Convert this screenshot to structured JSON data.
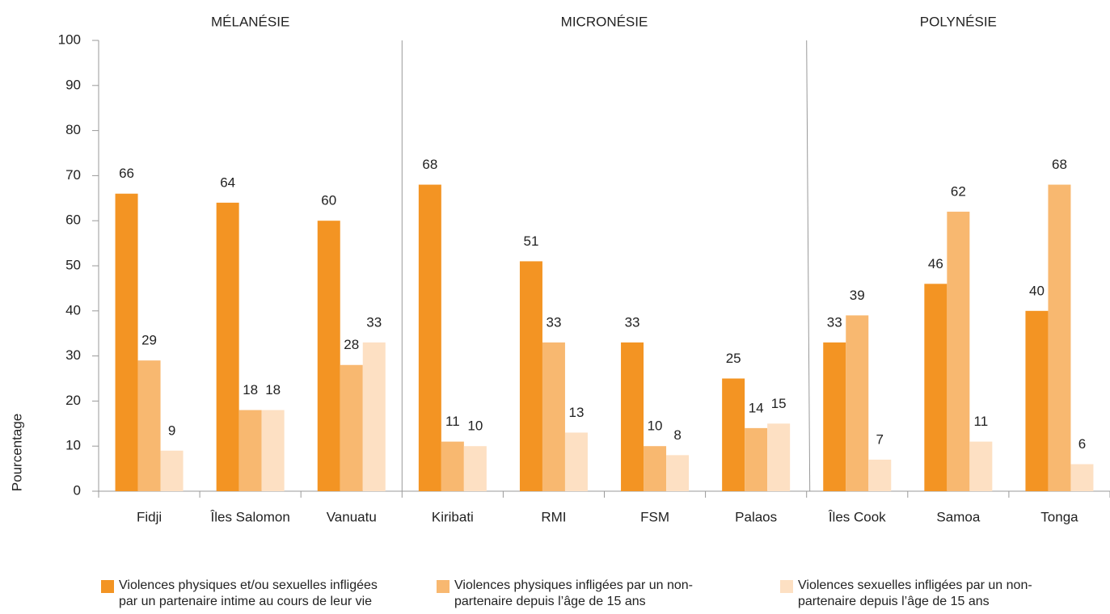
{
  "chart_data": {
    "type": "bar",
    "y_label": "Pourcentage",
    "groups": [
      {
        "label": "MÉLANÉSIE",
        "count": 3
      },
      {
        "label": "MICRONÉSIE",
        "count": 4
      },
      {
        "label": "POLYNÉSIE",
        "count": 3
      }
    ],
    "categories": [
      "Fidji",
      "Îles Salomon",
      "Vanuatu",
      "Kiribati",
      "RMI",
      "FSM",
      "Palaos",
      "Îles Cook",
      "Samoa",
      "Tonga"
    ],
    "series": [
      {
        "name": "Violences physiques et/ou sexuelles infligées par un partenaire intime au cours de leur vie",
        "color": "#f39423",
        "values": [
          66,
          64,
          60,
          68,
          51,
          33,
          25,
          33,
          46,
          40
        ]
      },
      {
        "name": "Violences physiques infligées par un non-partenaire depuis l’âge de 15 ans",
        "color": "#f8b870",
        "values": [
          29,
          18,
          28,
          11,
          33,
          10,
          14,
          39,
          62,
          68
        ]
      },
      {
        "name": "Violences sexuelles infligées par un non-partenaire depuis l’âge de 15 ans",
        "color": "#fde0c3",
        "values": [
          9,
          18,
          33,
          10,
          13,
          8,
          15,
          7,
          11,
          6
        ]
      }
    ],
    "ylim": [
      0,
      100
    ],
    "yticks": [
      0,
      10,
      20,
      30,
      40,
      50,
      60,
      70,
      80,
      90,
      100
    ],
    "grid": false
  }
}
